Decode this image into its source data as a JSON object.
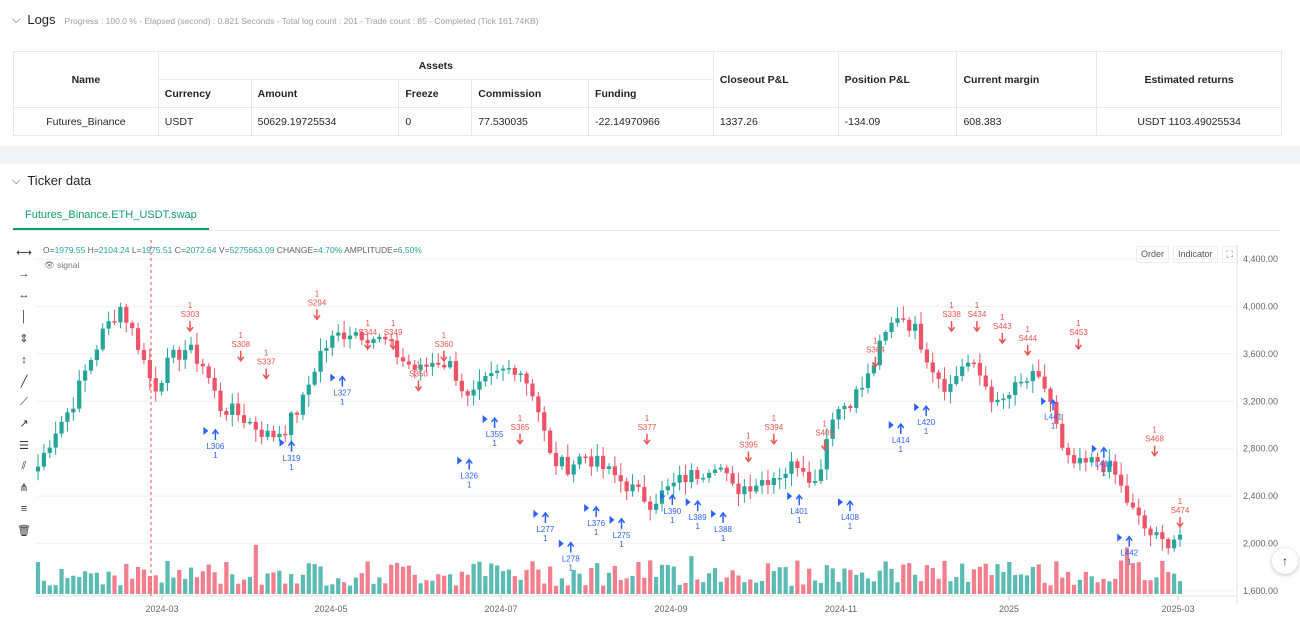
{
  "logs": {
    "title": "Logs",
    "summary": "Progress : 100.0 % - Elapsed (second) : 0.821 Seconds - Total log count : 201 - Trade count : 85 - Completed (Tick 161.74KB)"
  },
  "assets_table": {
    "headers": {
      "name": "Name",
      "assets": "Assets",
      "currency": "Currency",
      "amount": "Amount",
      "freeze": "Freeze",
      "commission": "Commission",
      "funding": "Funding",
      "closeout_pnl": "Closeout P&L",
      "position_pnl": "Position P&L",
      "current_margin": "Current margin",
      "estimated_returns": "Estimated returns"
    },
    "row": {
      "name": "Futures_Binance",
      "currency": "USDT",
      "amount": "50629.19725534",
      "freeze": "0",
      "commission": "77.530035",
      "funding": "-22.14970966",
      "closeout_pnl": "1337.26",
      "position_pnl": "-134.09",
      "current_margin": "608.383",
      "estimated_returns": "USDT 1103.49025534"
    }
  },
  "ticker": {
    "title": "Ticker data",
    "tab_label": "Futures_Binance.ETH_USDT.swap",
    "ohlc": {
      "o_label": "O=",
      "o": "1979.55",
      "h_label": " H=",
      "h": "2104.24",
      "l_label": " L=",
      "l": "1975.51",
      "c_label": " C=",
      "c": "2072.64",
      "v_label": " V=",
      "v": "5275663.09",
      "chg_label": " CHANGE=",
      "chg": "4.70%",
      "amp_label": " AMPLITUDE=",
      "amp": "6.50%"
    },
    "signal_label": "signal",
    "buttons": {
      "order": "Order",
      "indicator": "Indicator"
    }
  },
  "toolbar_icons": [
    "horizontal-line-icon",
    "horizontal-ray-icon",
    "segment-icon",
    "vertical-line-icon",
    "vertical-segment-icon",
    "vertical-ray-icon",
    "trend-line-icon",
    "trend-ray-icon",
    "arrow-line-icon",
    "price-range-icon",
    "parallel-channel-icon",
    "pitchfork-icon",
    "fib-retracement-icon",
    "delete-icon"
  ],
  "colors": {
    "up": "#26a69a",
    "down": "#ef5367",
    "accent": "#0e9f6e",
    "long_marker": "#2962ff",
    "short_marker": "#ef5350"
  },
  "chart_data": {
    "type": "candlestick",
    "symbol": "Futures_Binance.ETH_USDT.swap",
    "y_ticks": [
      "4,400.00",
      "4,000.00",
      "3,600.00",
      "3,200.00",
      "2,800.00",
      "2,400.00",
      "2,000.00",
      "1,600.00"
    ],
    "y_range": [
      1600,
      4400
    ],
    "x_ticks": [
      "2024-03",
      "2024-05",
      "2024-07",
      "2024-09",
      "2024-11",
      "2025",
      "2025-03"
    ],
    "close_path": [
      2650,
      2950,
      3150,
      3500,
      3800,
      4000,
      3700,
      3300,
      3550,
      3650,
      3500,
      3150,
      3100,
      3000,
      2900,
      2980,
      3200,
      3600,
      3750,
      3800,
      3750,
      3700,
      3550,
      3450,
      3550,
      3500,
      3200,
      3350,
      3450,
      3500,
      3250,
      2700,
      2650,
      2750,
      2650,
      2550,
      2450,
      2350,
      2450,
      2550,
      2600,
      2700,
      2450,
      2500,
      2550,
      2600,
      2700,
      2500,
      3100,
      3200,
      3350,
      3700,
      3950,
      3800,
      3500,
      3300,
      3550,
      3400,
      3150,
      3300,
      3400,
      3300,
      2700,
      2650,
      2700,
      2600,
      2300,
      2100,
      2000,
      2080
    ],
    "signals": [
      {
        "label": "S303",
        "price": 3800,
        "type": "short"
      },
      {
        "label": "L306",
        "price": 2950,
        "type": "long"
      },
      {
        "label": "S308",
        "price": 3550,
        "type": "short"
      },
      {
        "label": "S337",
        "price": 3400,
        "type": "short"
      },
      {
        "label": "L319",
        "price": 2850,
        "type": "long"
      },
      {
        "label": "S294",
        "price": 3900,
        "type": "short"
      },
      {
        "label": "L327",
        "price": 3400,
        "type": "long"
      },
      {
        "label": "S344",
        "price": 3650,
        "type": "short"
      },
      {
        "label": "S349",
        "price": 3650,
        "type": "short"
      },
      {
        "label": "S350",
        "price": 3300,
        "type": "short"
      },
      {
        "label": "S360",
        "price": 3550,
        "type": "short"
      },
      {
        "label": "L326",
        "price": 2700,
        "type": "long"
      },
      {
        "label": "L355",
        "price": 3050,
        "type": "long"
      },
      {
        "label": "S365",
        "price": 2850,
        "type": "short"
      },
      {
        "label": "L277",
        "price": 2250,
        "type": "long"
      },
      {
        "label": "L278",
        "price": 2000,
        "type": "long"
      },
      {
        "label": "L376",
        "price": 2300,
        "type": "long"
      },
      {
        "label": "L275",
        "price": 2200,
        "type": "long"
      },
      {
        "label": "S377",
        "price": 2850,
        "type": "short"
      },
      {
        "label": "L390",
        "price": 2400,
        "type": "long"
      },
      {
        "label": "L389",
        "price": 2350,
        "type": "long"
      },
      {
        "label": "L388",
        "price": 2250,
        "type": "long"
      },
      {
        "label": "S395",
        "price": 2700,
        "type": "short"
      },
      {
        "label": "S394",
        "price": 2850,
        "type": "short"
      },
      {
        "label": "L401",
        "price": 2400,
        "type": "long"
      },
      {
        "label": "S405",
        "price": 2800,
        "type": "short"
      },
      {
        "label": "L408",
        "price": 2350,
        "type": "long"
      },
      {
        "label": "S364",
        "price": 3500,
        "type": "short"
      },
      {
        "label": "L414",
        "price": 3000,
        "type": "long"
      },
      {
        "label": "L420",
        "price": 3150,
        "type": "long"
      },
      {
        "label": "S338",
        "price": 3800,
        "type": "short"
      },
      {
        "label": "S434",
        "price": 3800,
        "type": "short"
      },
      {
        "label": "S443",
        "price": 3700,
        "type": "short"
      },
      {
        "label": "S444",
        "price": 3600,
        "type": "short"
      },
      {
        "label": "L441",
        "price": 3200,
        "type": "long"
      },
      {
        "label": "S453",
        "price": 3650,
        "type": "short"
      },
      {
        "label": "L413",
        "price": 2800,
        "type": "long"
      },
      {
        "label": "L442",
        "price": 2050,
        "type": "long"
      },
      {
        "label": "S468",
        "price": 2750,
        "type": "short"
      },
      {
        "label": "S474",
        "price": 2150,
        "type": "short"
      }
    ]
  }
}
